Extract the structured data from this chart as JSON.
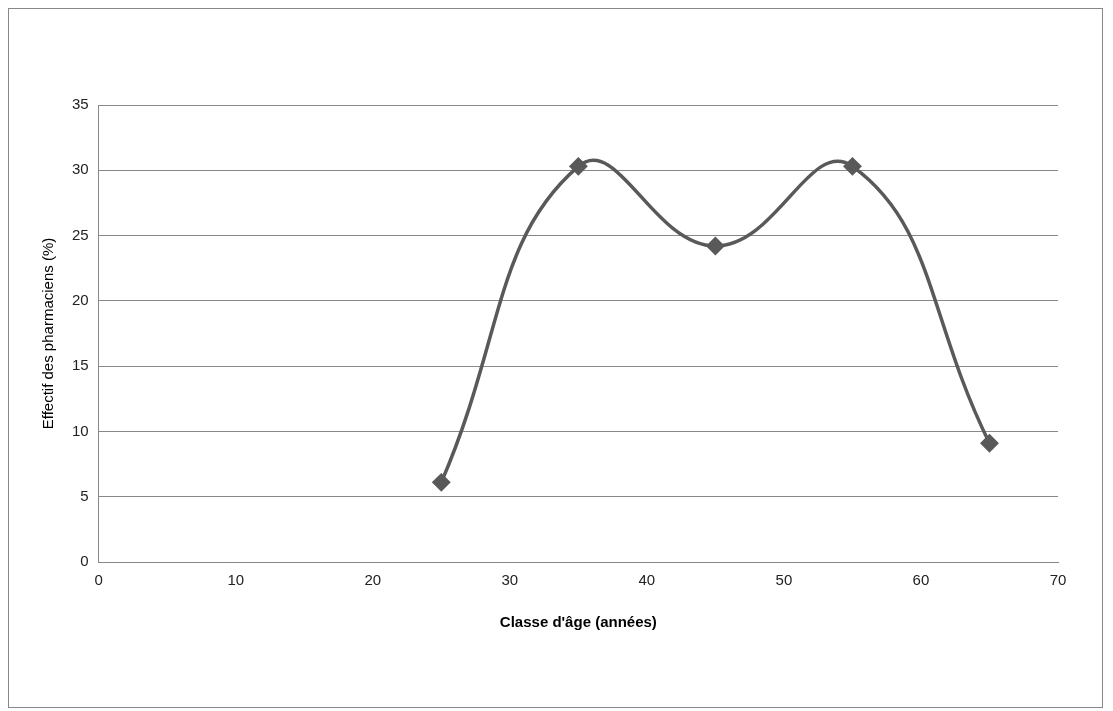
{
  "chart_data": {
    "type": "line",
    "xlabel": "Classe d'âge (années)",
    "ylabel": "Effectif des pharmaciens (%)",
    "x": [
      25,
      35,
      45,
      55,
      65
    ],
    "series": [
      {
        "color": "#595959",
        "values": [
          6.1,
          30.3,
          24.2,
          30.3,
          9.1
        ]
      }
    ],
    "xlim": [
      0,
      70
    ],
    "xticks": [
      0,
      10,
      20,
      30,
      40,
      50,
      60,
      70
    ],
    "ylim": [
      0,
      35
    ],
    "yticks": [
      0,
      5,
      10,
      15,
      20,
      25,
      30,
      35
    ],
    "grid": "y",
    "legend": false,
    "marker": "diamond",
    "line_style": "solid"
  }
}
